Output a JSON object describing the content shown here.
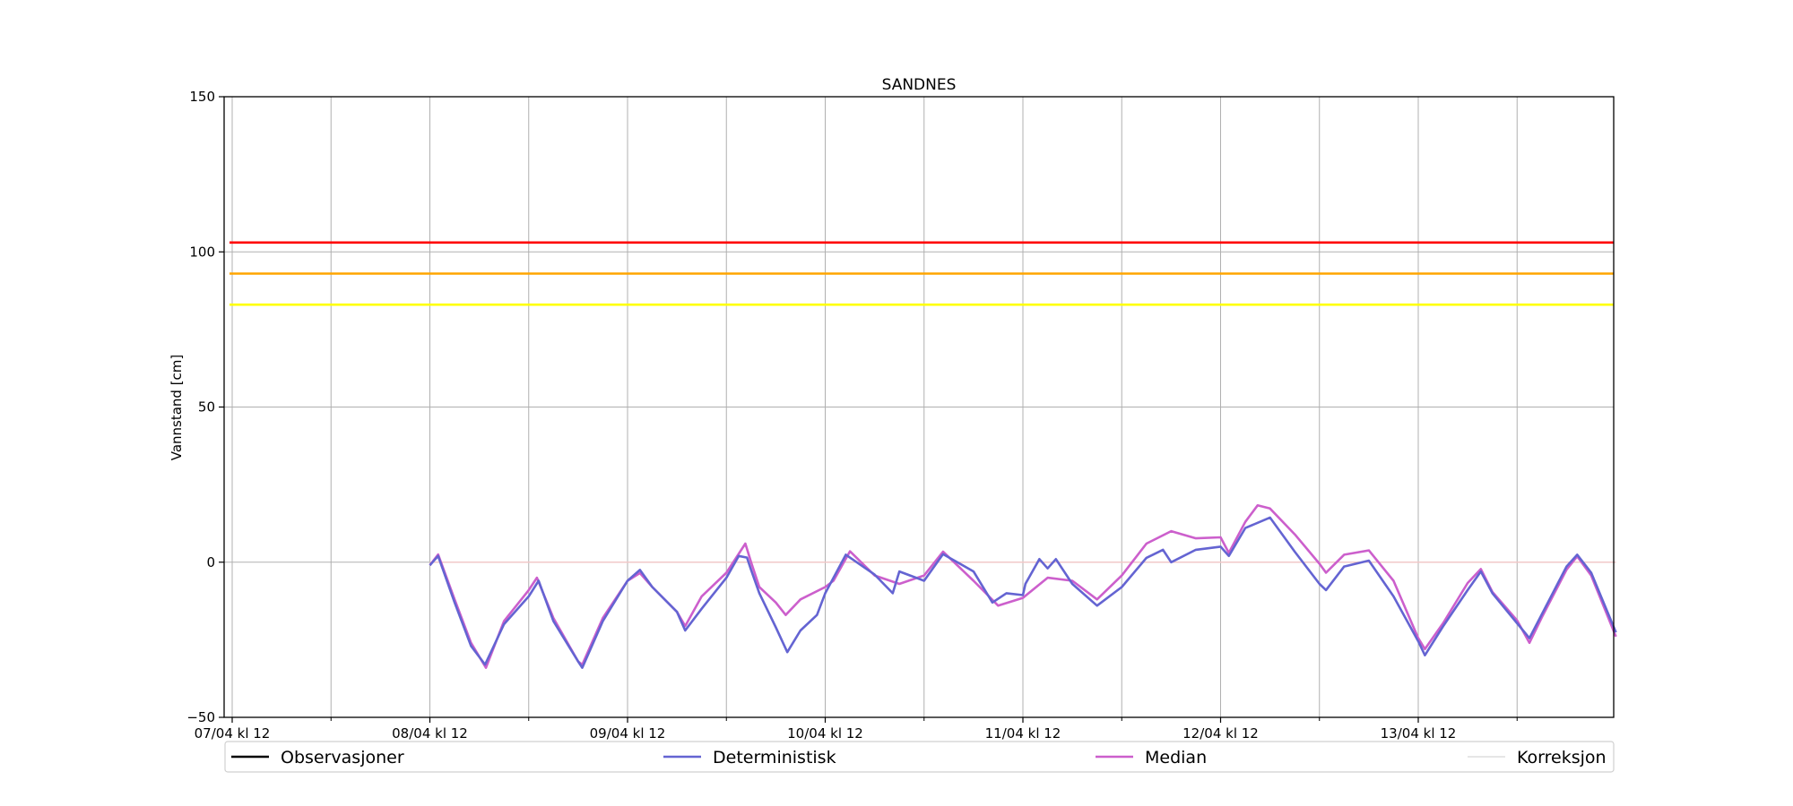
{
  "chart_data": {
    "type": "line",
    "title": "SANDNES",
    "xlabel": "",
    "ylabel": "Vannstand [cm]",
    "ylim": [
      -50,
      150
    ],
    "xlim_hours_from_first_tick": [
      0,
      168
    ],
    "x_unit": "hours since 07/04 kl 12",
    "grid": true,
    "legend_placement": "bottom, below axes",
    "yticks": [
      -50,
      0,
      50,
      100,
      150
    ],
    "yticklabels": [
      "−50",
      "0",
      "50",
      "100",
      "150"
    ],
    "xticks_hours": [
      0,
      24,
      48,
      72,
      96,
      120,
      144
    ],
    "xticklabels": [
      "07/04 kl 12",
      "08/04 kl 12",
      "09/04 kl 12",
      "10/04 kl 12",
      "11/04 kl 12",
      "12/04 kl 12",
      "13/04 kl 12"
    ],
    "minor_xticks_hours": [
      12,
      36,
      60,
      84,
      108,
      132,
      156
    ],
    "thresholds": [
      {
        "value": 103,
        "color": "#ff0000"
      },
      {
        "value": 93,
        "color": "#ffa500"
      },
      {
        "value": 83,
        "color": "#ffff00"
      }
    ],
    "series": [
      {
        "name": "Observasjoner",
        "color": "#000000",
        "points": []
      },
      {
        "name": "Deterministisk",
        "color": "#6464d2",
        "points": [
          [
            24,
            -1
          ],
          [
            25,
            2
          ],
          [
            27,
            -13
          ],
          [
            29,
            -27
          ],
          [
            30.7,
            -33
          ],
          [
            33,
            -20
          ],
          [
            36,
            -11
          ],
          [
            37.2,
            -6
          ],
          [
            39,
            -19
          ],
          [
            42,
            -32
          ],
          [
            42.5,
            -34
          ],
          [
            45,
            -19
          ],
          [
            48,
            -6
          ],
          [
            49.5,
            -2.5
          ],
          [
            51,
            -8
          ],
          [
            54,
            -16
          ],
          [
            55,
            -22
          ],
          [
            57,
            -15
          ],
          [
            60,
            -5
          ],
          [
            61.5,
            2
          ],
          [
            62.5,
            1.5
          ],
          [
            63,
            -2.5
          ],
          [
            64,
            -10
          ],
          [
            66,
            -21
          ],
          [
            67.4,
            -29
          ],
          [
            69,
            -22
          ],
          [
            71,
            -17
          ],
          [
            72,
            -10
          ],
          [
            74.5,
            2.4
          ],
          [
            78,
            -4
          ],
          [
            80.2,
            -10
          ],
          [
            81,
            -3
          ],
          [
            84,
            -6
          ],
          [
            86.3,
            2.6
          ],
          [
            90,
            -3
          ],
          [
            92.3,
            -13
          ],
          [
            94,
            -10
          ],
          [
            96,
            -10.6
          ],
          [
            96.3,
            -7
          ],
          [
            98,
            1
          ],
          [
            99,
            -2
          ],
          [
            100,
            1
          ],
          [
            102,
            -7
          ],
          [
            105,
            -14
          ],
          [
            108,
            -8
          ],
          [
            111,
            1.4
          ],
          [
            113,
            4
          ],
          [
            114,
            0
          ],
          [
            117,
            4
          ],
          [
            120,
            5
          ],
          [
            121,
            2
          ],
          [
            123,
            11
          ],
          [
            126,
            14.4
          ],
          [
            129,
            3.4
          ],
          [
            132,
            -7
          ],
          [
            132.8,
            -9
          ],
          [
            135,
            -1.4
          ],
          [
            138,
            0.5
          ],
          [
            141,
            -11
          ],
          [
            144,
            -25.5
          ],
          [
            144.8,
            -30
          ],
          [
            147,
            -20.7
          ],
          [
            150,
            -9
          ],
          [
            151.6,
            -3
          ],
          [
            153,
            -10
          ],
          [
            156,
            -19.7
          ],
          [
            157.5,
            -24.5
          ],
          [
            159,
            -16.8
          ],
          [
            162,
            -1.4
          ],
          [
            163.3,
            2.4
          ],
          [
            165,
            -3.4
          ],
          [
            168,
            -22.6
          ]
        ]
      },
      {
        "name": "Median",
        "color": "#cc5fcc",
        "points": [
          [
            24,
            -1
          ],
          [
            25,
            2.5
          ],
          [
            27,
            -12
          ],
          [
            29,
            -26
          ],
          [
            30.8,
            -34
          ],
          [
            33,
            -19
          ],
          [
            36,
            -9
          ],
          [
            37,
            -5
          ],
          [
            39,
            -18
          ],
          [
            42,
            -32
          ],
          [
            42.5,
            -33
          ],
          [
            45,
            -18
          ],
          [
            48,
            -6
          ],
          [
            49.5,
            -3.5
          ],
          [
            51,
            -8
          ],
          [
            54,
            -16
          ],
          [
            55,
            -20.6
          ],
          [
            57,
            -11
          ],
          [
            60,
            -3.4
          ],
          [
            62.3,
            6
          ],
          [
            63,
            0
          ],
          [
            64,
            -8
          ],
          [
            66,
            -13
          ],
          [
            67.2,
            -17
          ],
          [
            69,
            -12
          ],
          [
            72,
            -8
          ],
          [
            73,
            -6
          ],
          [
            75,
            3.5
          ],
          [
            78,
            -4.3
          ],
          [
            81,
            -7
          ],
          [
            84,
            -4.3
          ],
          [
            86.3,
            3.4
          ],
          [
            90,
            -6
          ],
          [
            93,
            -14
          ],
          [
            96,
            -11.5
          ],
          [
            99,
            -5
          ],
          [
            102,
            -6
          ],
          [
            105,
            -12
          ],
          [
            108,
            -4.3
          ],
          [
            111,
            6
          ],
          [
            114,
            10
          ],
          [
            117,
            7.7
          ],
          [
            120,
            8
          ],
          [
            121,
            3
          ],
          [
            123,
            13
          ],
          [
            124.5,
            18.3
          ],
          [
            126,
            17.3
          ],
          [
            129,
            9
          ],
          [
            132,
            -0.5
          ],
          [
            132.8,
            -3.4
          ],
          [
            135,
            2.4
          ],
          [
            138,
            3.8
          ],
          [
            141,
            -6
          ],
          [
            144,
            -24.5
          ],
          [
            144.8,
            -28
          ],
          [
            147,
            -19.7
          ],
          [
            150,
            -6.7
          ],
          [
            151.6,
            -2.2
          ],
          [
            153,
            -9.6
          ],
          [
            156,
            -18.8
          ],
          [
            157.5,
            -26
          ],
          [
            159,
            -17.8
          ],
          [
            162,
            -2.4
          ],
          [
            163.3,
            1.9
          ],
          [
            165,
            -4.3
          ],
          [
            168,
            -24
          ]
        ]
      },
      {
        "name": "Korreksjon",
        "color": "#f2c8c8",
        "points": [
          [
            24,
            0
          ],
          [
            168,
            0
          ]
        ]
      }
    ],
    "legend": [
      "Observasjoner",
      "Deterministisk",
      "Median",
      "Korreksjon"
    ]
  }
}
